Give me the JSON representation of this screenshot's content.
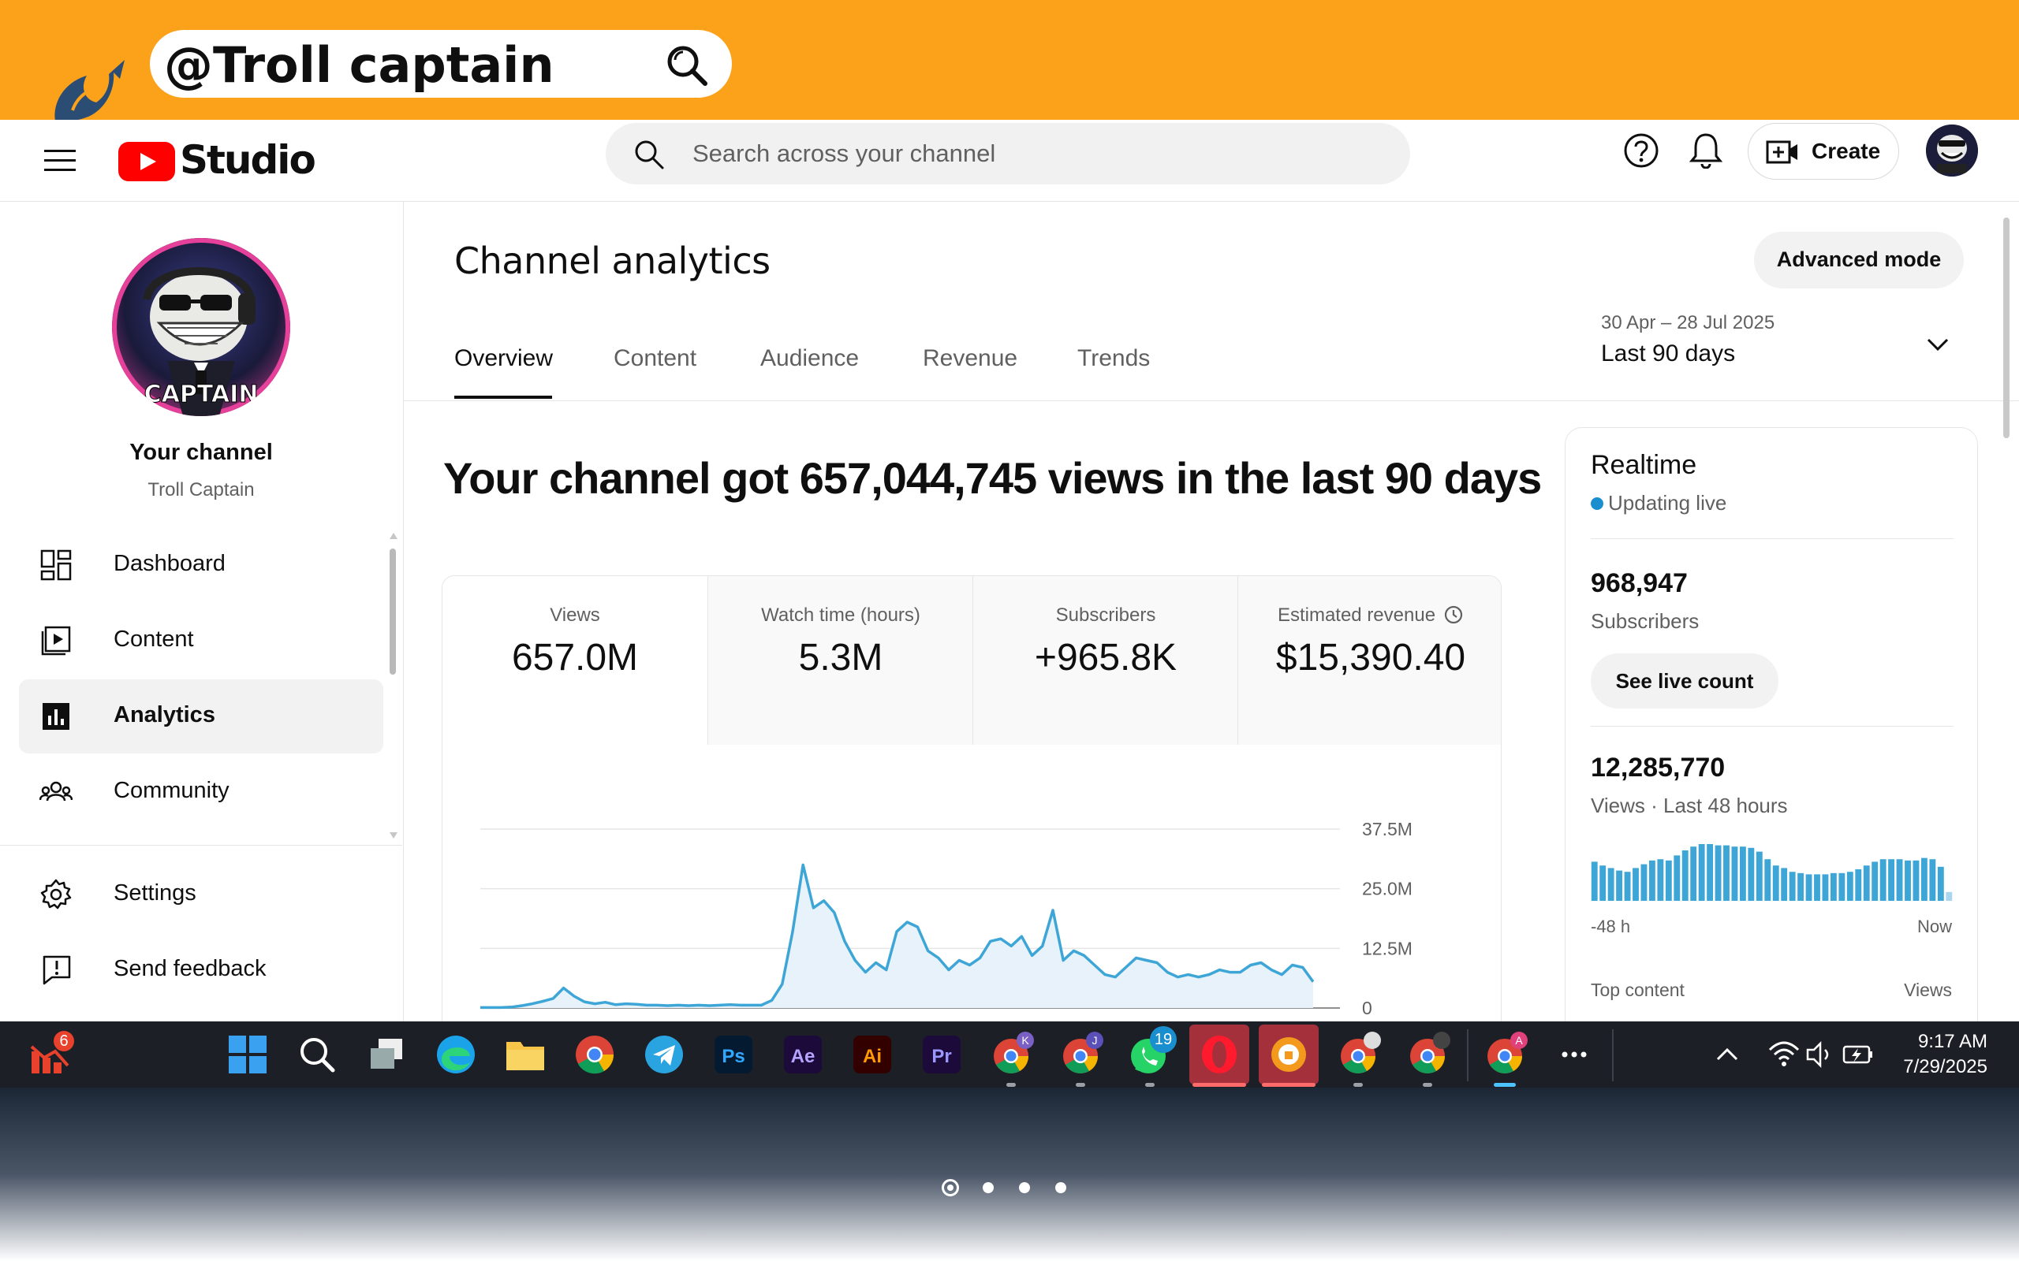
{
  "banner": {
    "handle": "@Troll captain"
  },
  "topbar": {
    "brand": "Studio",
    "search_placeholder": "Search across your channel",
    "create_label": "Create"
  },
  "sidebar": {
    "your_channel": "Your channel",
    "channel_name": "Troll Captain",
    "avatar_text": "CAPTAIN",
    "items": [
      {
        "label": "Dashboard",
        "icon": "dashboard-icon"
      },
      {
        "label": "Content",
        "icon": "content-icon"
      },
      {
        "label": "Analytics",
        "icon": "analytics-icon",
        "active": true
      },
      {
        "label": "Community",
        "icon": "community-icon"
      }
    ],
    "footer_items": [
      {
        "label": "Settings",
        "icon": "gear-icon"
      },
      {
        "label": "Send feedback",
        "icon": "feedback-icon"
      }
    ]
  },
  "main": {
    "title": "Channel analytics",
    "advanced_mode": "Advanced mode",
    "date_range": "30 Apr – 28 Jul 2025",
    "date_preset": "Last 90 days",
    "tabs": [
      "Overview",
      "Content",
      "Audience",
      "Revenue",
      "Trends"
    ],
    "active_tab": "Overview",
    "headline": "Your channel got 657,044,745 views in the last 90 days",
    "metrics": [
      {
        "label": "Views",
        "value": "657.0M"
      },
      {
        "label": "Watch time (hours)",
        "value": "5.3M"
      },
      {
        "label": "Subscribers",
        "value": "+965.8K"
      },
      {
        "label": "Estimated revenue",
        "value": "$15,390.40"
      }
    ]
  },
  "chart_data": {
    "type": "area",
    "title": "",
    "xlabel": "",
    "ylabel": "",
    "y_ticks": [
      "37.5M",
      "25.0M",
      "12.5M",
      "0"
    ],
    "ylim": [
      0,
      37500000
    ],
    "series": [
      {
        "values": [
          0.1,
          0.1,
          0.1,
          0.2,
          0.5,
          0.9,
          1.4,
          2.0,
          4.2,
          2.5,
          1.3,
          0.9,
          1.2,
          0.7,
          0.9,
          0.8,
          0.6,
          0.6,
          0.5,
          0.6,
          0.5,
          0.6,
          0.5,
          0.6,
          0.7,
          0.6,
          0.6,
          0.6,
          1.6,
          5.0,
          16.0,
          30.0,
          21.0,
          22.5,
          20.0,
          14.0,
          10.0,
          7.5,
          9.5,
          8.0,
          16.0,
          18.0,
          17.0,
          12.0,
          10.5,
          8.0,
          10.0,
          9.0,
          10.5,
          14.0,
          14.5,
          13.0,
          15.0,
          11.0,
          13.0,
          20.5,
          10.0,
          12.0,
          11.0,
          9.0,
          7.0,
          6.5,
          8.5,
          10.5,
          10.0,
          9.5,
          7.5,
          6.5,
          7.0,
          6.5,
          7.0,
          8.0,
          7.5,
          7.5,
          9.0,
          9.5,
          8.0,
          7.0,
          9.0,
          8.5,
          5.5
        ],
        "unit": "M"
      }
    ],
    "fill_color": "#e8f2fa",
    "line_color": "#3ea6d6"
  },
  "realtime": {
    "title": "Realtime",
    "status": "Updating live",
    "subscribers": "968,947",
    "subscribers_label": "Subscribers",
    "live_count_btn": "See live count",
    "views": "12,285,770",
    "views_label": "Views · Last 48 hours",
    "axis_left": "-48 h",
    "axis_right": "Now",
    "top_content": "Top content",
    "top_views": "Views",
    "bars": [
      0.62,
      0.56,
      0.52,
      0.48,
      0.46,
      0.52,
      0.58,
      0.64,
      0.66,
      0.64,
      0.72,
      0.8,
      0.86,
      0.9,
      0.9,
      0.88,
      0.88,
      0.86,
      0.86,
      0.84,
      0.78,
      0.66,
      0.56,
      0.52,
      0.46,
      0.44,
      0.42,
      0.42,
      0.42,
      0.44,
      0.44,
      0.46,
      0.5,
      0.56,
      0.62,
      0.66,
      0.66,
      0.66,
      0.64,
      0.64,
      0.68,
      0.66,
      0.54,
      0.14
    ]
  },
  "taskbar": {
    "time": "9:17 AM",
    "date": "7/29/2025",
    "badge_left": "6",
    "badge_whatsapp": "19",
    "app_labels": [
      "Ps",
      "Ae",
      "Ai",
      "Pr",
      "K",
      "J",
      "A"
    ]
  },
  "colors": {
    "banner": "#fba21a",
    "youtube_red": "#ff0000",
    "chart_line": "#3ea6d6",
    "taskbar": "#1c1f26"
  }
}
